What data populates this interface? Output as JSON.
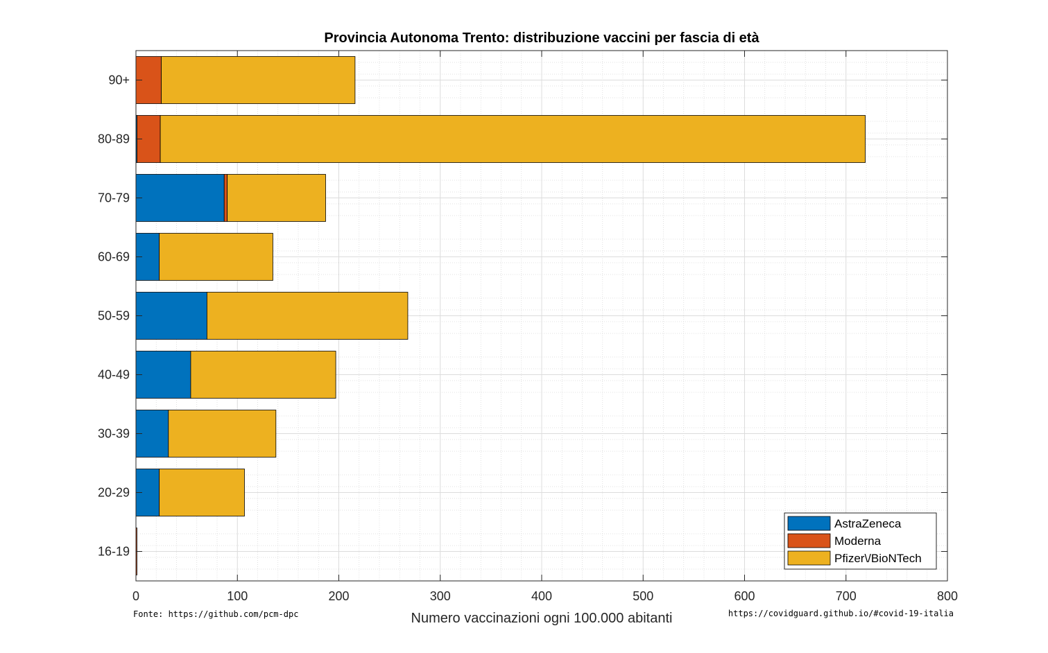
{
  "source_note": "Fonte: https://github.com/pcm-dpc",
  "site_note": "https://covidguard.github.io/#covid-19-italia",
  "chart_data": {
    "type": "bar",
    "orientation": "horizontal",
    "stacked": true,
    "title": "Provincia Autonoma Trento: distribuzione vaccini per fascia di età",
    "xlabel": "Numero vaccinazioni ogni 100.000 abitanti",
    "ylabel": "",
    "xlim": [
      0,
      800
    ],
    "xticks": [
      0,
      100,
      200,
      300,
      400,
      500,
      600,
      700,
      800
    ],
    "grid": true,
    "minor_grid": true,
    "legend_position": "bottom-right",
    "categories": [
      "16-19",
      "20-29",
      "30-39",
      "40-49",
      "50-59",
      "60-69",
      "70-79",
      "80-89",
      "90+"
    ],
    "series": [
      {
        "name": "AstraZeneca",
        "color": "#0072BD",
        "values": [
          0,
          23,
          32,
          54,
          70,
          23,
          87,
          1,
          0
        ]
      },
      {
        "name": "Moderna",
        "color": "#D95319",
        "values": [
          1,
          0,
          0,
          0,
          0,
          0,
          3,
          23,
          25
        ]
      },
      {
        "name": "Pfizer\\/BioNTech",
        "color": "#EDB120",
        "values": [
          0,
          84,
          106,
          143,
          198,
          112,
          97,
          695,
          191
        ]
      }
    ]
  }
}
